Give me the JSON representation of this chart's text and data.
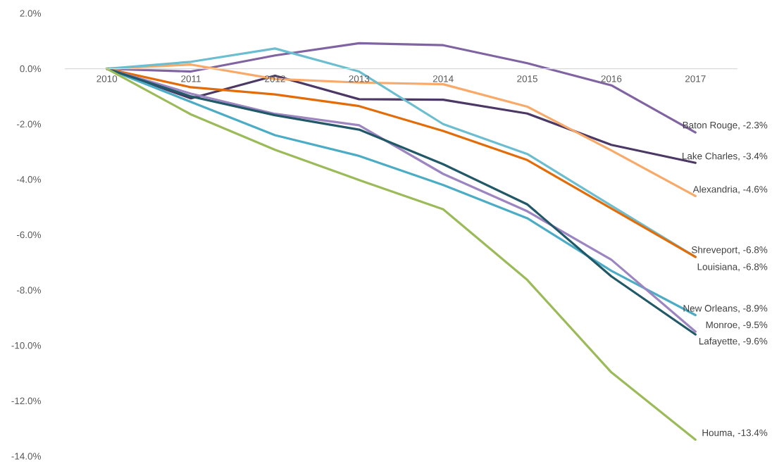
{
  "chart_data": {
    "type": "line",
    "categories": [
      "2010",
      "2011",
      "2012",
      "2013",
      "2014",
      "2015",
      "2016",
      "2017"
    ],
    "ylim": [
      -14,
      2
    ],
    "yticks": [
      {
        "value": 2,
        "label": "2.0%"
      },
      {
        "value": 0,
        "label": "0.0%"
      },
      {
        "value": -2,
        "label": "-2.0%"
      },
      {
        "value": -4,
        "label": "-4.0%"
      },
      {
        "value": -6,
        "label": "-6.0%"
      },
      {
        "value": -8,
        "label": "-8.0%"
      },
      {
        "value": -10,
        "label": "-10.0%"
      },
      {
        "value": -12,
        "label": "-12.0%"
      },
      {
        "value": -14,
        "label": "-14.0%"
      }
    ],
    "grid": false,
    "marker": "none",
    "line_style": "solid",
    "series": [
      {
        "color": "#8064a2",
        "values": [
          0,
          -0.1,
          0.48,
          0.92,
          0.85,
          0.2,
          -0.6,
          -2.3
        ],
        "value_labels": [
          null,
          null,
          null,
          null,
          null,
          null,
          null,
          "Baton Rouge, -2.3%"
        ]
      },
      {
        "color": "#4b3865",
        "values": [
          0,
          -1.07,
          -0.25,
          -1.1,
          -1.12,
          -1.62,
          -2.75,
          -3.4
        ],
        "value_labels": [
          null,
          null,
          null,
          null,
          null,
          null,
          null,
          "Lake Charles, -3.4%"
        ]
      },
      {
        "color": "#f9a968",
        "values": [
          0,
          0.15,
          -0.37,
          -0.5,
          -0.56,
          -1.37,
          -2.95,
          -4.6
        ],
        "value_labels": [
          null,
          null,
          null,
          null,
          null,
          null,
          null,
          "Alexandria, -4.6%"
        ]
      },
      {
        "color": "#6bbdd0",
        "values": [
          0,
          0.25,
          0.73,
          -0.1,
          -2.0,
          -3.08,
          -4.95,
          -6.8
        ],
        "value_labels": [
          null,
          null,
          null,
          null,
          null,
          null,
          null,
          "Shreveport, -6.8%"
        ]
      },
      {
        "color": "#e36c09",
        "values": [
          0,
          -0.67,
          -0.93,
          -1.35,
          -2.25,
          -3.3,
          -5.05,
          -6.8
        ],
        "value_labels": [
          null,
          null,
          null,
          null,
          null,
          null,
          null,
          "Louisiana, -6.8%"
        ]
      },
      {
        "color": "#4bacc6",
        "values": [
          0,
          -1.2,
          -2.4,
          -3.15,
          -4.2,
          -5.4,
          -7.3,
          -8.9
        ],
        "value_labels": [
          null,
          null,
          null,
          null,
          null,
          null,
          null,
          "New Orleans, -8.9%"
        ]
      },
      {
        "color": "#9c85c0",
        "values": [
          0,
          -0.9,
          -1.63,
          -2.04,
          -3.8,
          -5.15,
          -6.9,
          -9.5
        ],
        "value_labels": [
          null,
          null,
          null,
          null,
          null,
          null,
          null,
          "Monroe, -9.5%"
        ]
      },
      {
        "color": "#215968",
        "values": [
          0,
          -1.0,
          -1.68,
          -2.2,
          -3.45,
          -4.9,
          -7.5,
          -9.6
        ],
        "value_labels": [
          null,
          null,
          null,
          null,
          null,
          null,
          null,
          "Lafayette, -9.6%"
        ]
      },
      {
        "color": "#9bbb59",
        "values": [
          0,
          -1.65,
          -2.93,
          -4.02,
          -5.08,
          -7.63,
          -10.97,
          -13.4
        ],
        "value_labels": [
          null,
          null,
          null,
          null,
          null,
          null,
          null,
          "Houma, -13.4%"
        ]
      }
    ]
  }
}
